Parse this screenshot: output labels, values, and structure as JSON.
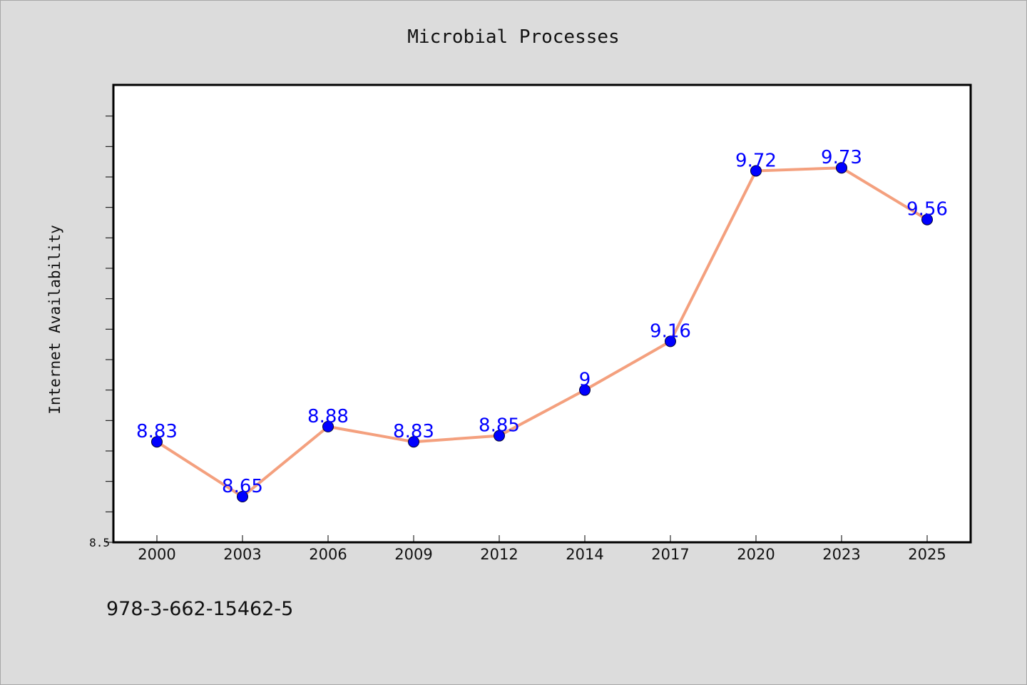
{
  "chart_data": {
    "type": "line",
    "title": "Microbial Processes",
    "xlabel": "",
    "ylabel": "Internet Availability",
    "categories": [
      "2000",
      "2003",
      "2006",
      "2009",
      "2012",
      "2014",
      "2017",
      "2020",
      "2023",
      "2025"
    ],
    "series": [
      {
        "values": [
          8.83,
          8.65,
          8.88,
          8.83,
          8.85,
          9.0,
          9.16,
          9.72,
          9.73,
          9.56
        ],
        "labels": [
          "8.83",
          "8.65",
          "8.88",
          "8.83",
          "8.85",
          "9",
          "9.16",
          "9.72",
          "9.73",
          "9.56"
        ]
      }
    ],
    "ylim": [
      8.5,
      10.0
    ],
    "y_tick_step": 0.1,
    "y_tick_labels": [
      {
        "value": 8.5,
        "label": "8.5"
      }
    ],
    "grid": false,
    "line_color": "#f4a07e",
    "marker_color": "#0000ff",
    "label_color": "#0000ff"
  },
  "footer": {
    "text": "978-3-662-15462-5"
  }
}
